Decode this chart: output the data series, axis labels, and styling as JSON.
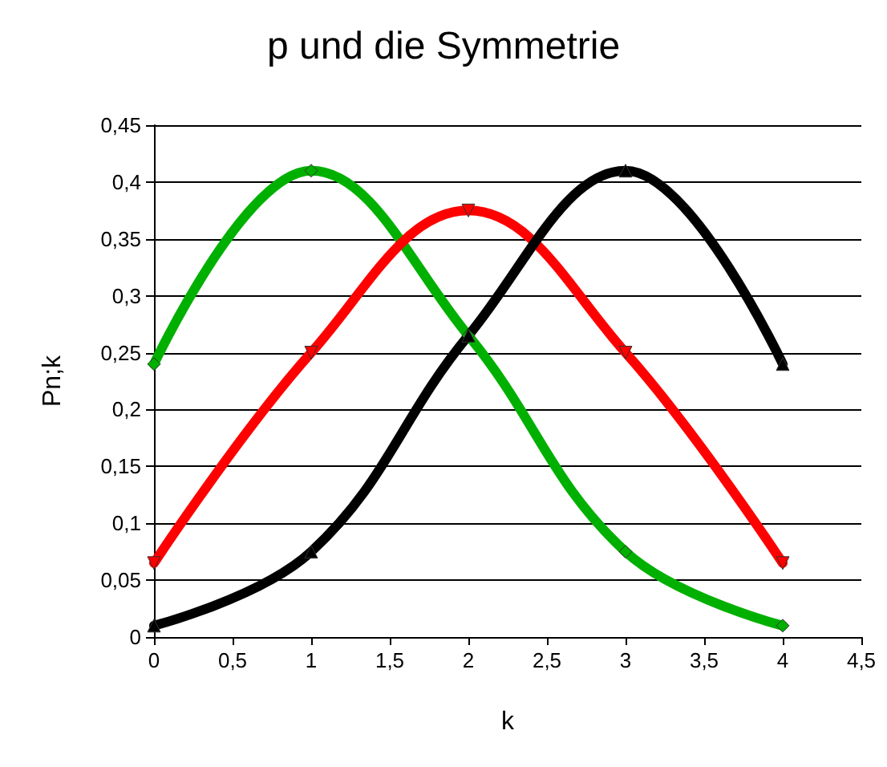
{
  "chart_data": {
    "type": "line",
    "title": "p und die Symmetrie",
    "xlabel": "k",
    "ylabel": "Pn;k",
    "x": [
      0,
      1,
      2,
      3,
      4
    ],
    "series": [
      {
        "color": "#00b000",
        "marker": "diamond",
        "values": [
          0.24,
          0.41,
          0.265,
          0.075,
          0.01
        ]
      },
      {
        "color": "#ff0000",
        "marker": "triangle-down",
        "values": [
          0.065,
          0.25,
          0.375,
          0.25,
          0.065
        ]
      },
      {
        "color": "#000000",
        "marker": "triangle",
        "values": [
          0.01,
          0.075,
          0.265,
          0.41,
          0.24
        ]
      }
    ],
    "xlim": [
      0,
      4.5
    ],
    "xticks": [
      0,
      {
        "value": 0.5,
        "label": "0,5"
      },
      1,
      {
        "value": 1.5,
        "label": "1,5"
      },
      2,
      {
        "value": 2.5,
        "label": "2,5"
      },
      3,
      {
        "value": 3.5,
        "label": "3,5"
      },
      4,
      {
        "value": 4.5,
        "label": "4,5"
      }
    ],
    "ylim": [
      0,
      0.45
    ],
    "yticks": [
      0,
      {
        "value": 0.05,
        "label": "0,05"
      },
      {
        "value": 0.1,
        "label": "0,1"
      },
      {
        "value": 0.15,
        "label": "0,15"
      },
      {
        "value": 0.2,
        "label": "0,2"
      },
      {
        "value": 0.25,
        "label": "0,25"
      },
      {
        "value": 0.3,
        "label": "0,3"
      },
      {
        "value": 0.35,
        "label": "0,35"
      },
      {
        "value": 0.4,
        "label": "0,4"
      },
      {
        "value": 0.45,
        "label": "0,45"
      }
    ],
    "grid": "y"
  }
}
